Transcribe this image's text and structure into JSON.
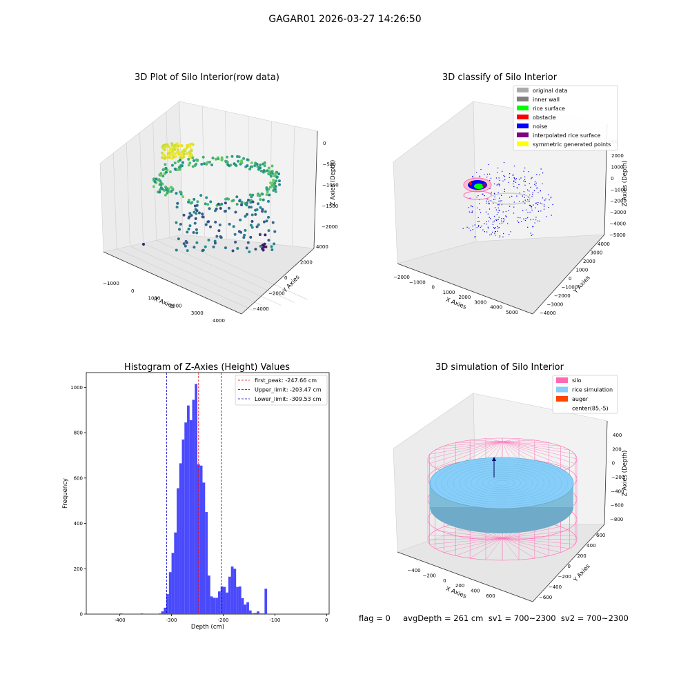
{
  "suptitle": "GAGAR01 2026-03-27 14:26:50",
  "colors": {
    "hist_bar": "#4a4afc",
    "peak_line": "#ff0000",
    "limit_line": "#0000cc",
    "pane": "#f0f0f0",
    "silo_wire": "#ff69b4",
    "rice_surface": "#87cefa",
    "auger": "#ff4500"
  },
  "panel1": {
    "title": "3D Plot of Silo Interior(row data)",
    "xlabel": "X Axies",
    "ylabel": "Y Axies",
    "zlabel": "Z Axies (Depth)",
    "xticks": [
      "−1000",
      "0",
      "1000",
      "2000",
      "3000",
      "4000"
    ],
    "yticks": [
      "−4000",
      "−2000",
      "0",
      "2000",
      "4000"
    ],
    "zticks": [
      "0",
      "−500",
      "−1000",
      "−1500",
      "−2000"
    ],
    "colormap": "viridis"
  },
  "panel2": {
    "title": "3D classify of Silo Interior",
    "xlabel": "X Axies",
    "ylabel": "Y Axies",
    "zlabel": "Z Axies (Depth)",
    "xticks": [
      "−2000",
      "−1000",
      "0",
      "1000",
      "2000",
      "3000",
      "4000",
      "5000"
    ],
    "yticks": [
      "−4000",
      "−3000",
      "−2000",
      "−1000",
      "0",
      "1000",
      "2000",
      "3000",
      "4000"
    ],
    "zticks": [
      "2000",
      "1000",
      "0",
      "−1000",
      "−2000",
      "−3000",
      "−4000",
      "−5000"
    ],
    "zticks_partial": "000",
    "legend": [
      {
        "label": "original data",
        "color": "#aaaaaa"
      },
      {
        "label": "inner wall",
        "color": "#808080"
      },
      {
        "label": "rice surface",
        "color": "#00ff00"
      },
      {
        "label": "obstacle",
        "color": "#ff0000"
      },
      {
        "label": "noise",
        "color": "#0000ff"
      },
      {
        "label": "interpolated rice surface",
        "color": "#800080"
      },
      {
        "label": "symmetric generated points",
        "color": "#ffff00"
      }
    ]
  },
  "chart_data": {
    "type": "bar",
    "title": "Histogram of Z-Axies (Height) Values",
    "xlabel": "Depth (cm)",
    "ylabel": "Frequency",
    "xlim": [
      -465,
      5
    ],
    "ylim": [
      0,
      1065
    ],
    "xticks": [
      -400,
      -300,
      -200,
      -100,
      0
    ],
    "yticks": [
      0,
      200,
      400,
      600,
      800,
      1000
    ],
    "bin_width": 5,
    "bins": [
      [
        -400,
        3
      ],
      [
        -360,
        3
      ],
      [
        -325,
        3
      ],
      [
        -320,
        12
      ],
      [
        -315,
        28
      ],
      [
        -310,
        88
      ],
      [
        -305,
        185
      ],
      [
        -300,
        270
      ],
      [
        -295,
        360
      ],
      [
        -290,
        555
      ],
      [
        -285,
        665
      ],
      [
        -280,
        770
      ],
      [
        -275,
        845
      ],
      [
        -270,
        920
      ],
      [
        -265,
        855
      ],
      [
        -260,
        945
      ],
      [
        -255,
        1015
      ],
      [
        -250,
        660
      ],
      [
        -245,
        655
      ],
      [
        -240,
        580
      ],
      [
        -235,
        450
      ],
      [
        -230,
        170
      ],
      [
        -225,
        78
      ],
      [
        -220,
        72
      ],
      [
        -215,
        72
      ],
      [
        -210,
        100
      ],
      [
        -205,
        122
      ],
      [
        -200,
        120
      ],
      [
        -195,
        95
      ],
      [
        -190,
        165
      ],
      [
        -185,
        210
      ],
      [
        -180,
        200
      ],
      [
        -175,
        120
      ],
      [
        -170,
        122
      ],
      [
        -165,
        70
      ],
      [
        -160,
        42
      ],
      [
        -155,
        52
      ],
      [
        -150,
        16
      ],
      [
        -145,
        4
      ],
      [
        -140,
        5
      ],
      [
        -135,
        12
      ],
      [
        -130,
        3
      ],
      [
        -125,
        3
      ],
      [
        -120,
        112
      ]
    ],
    "vlines": [
      {
        "label": "first_peak: -247.66 cm",
        "x": -247.66,
        "color": "#ff0000"
      },
      {
        "label": "Upper_limit: -203.47 cm",
        "x": -203.47,
        "color": "#0000cc"
      },
      {
        "label": "Lower_limit: -309.53 cm",
        "x": -309.53,
        "color": "#0000cc"
      }
    ]
  },
  "panel4": {
    "title": "3D simulation of Silo Interior",
    "xlabel": "X Axies",
    "ylabel": "Y Axies",
    "zlabel": "Z Axies (Depth)",
    "xticks": [
      "−400",
      "−200",
      "0",
      "200",
      "400",
      "600"
    ],
    "yticks": [
      "−600",
      "−400",
      "−200",
      "0",
      "200",
      "400",
      "600"
    ],
    "zticks": [
      "400",
      "200",
      "0",
      "−200",
      "−400",
      "−600",
      "−800"
    ],
    "legend": [
      {
        "label": "silo",
        "color": "#ff69b4"
      },
      {
        "label": "rice simulation",
        "color": "#87cefa"
      },
      {
        "label": "auger",
        "color": "#ff4500"
      },
      {
        "label": "center(85,-5)",
        "color": ""
      }
    ]
  },
  "status_line": "flag = 0     avgDepth = 261 cm  sv1 = 700~2300  sv2 = 700~2300"
}
